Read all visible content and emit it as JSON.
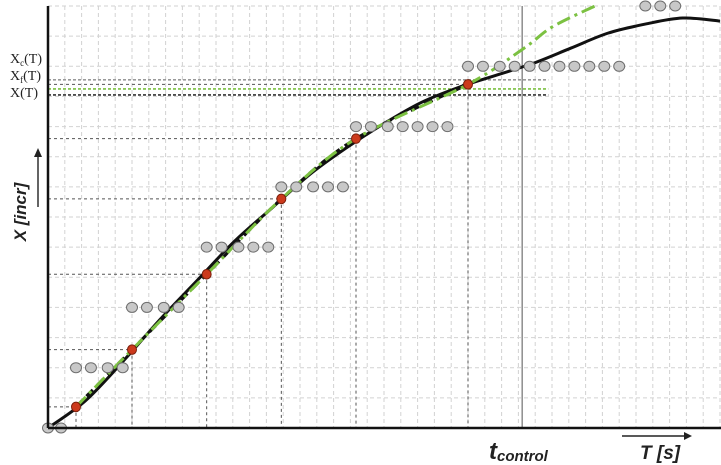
{
  "chart_data": {
    "type": "line",
    "axes": {
      "ylabel": "X [incr]",
      "xlabel": "T [s]",
      "x_marker_label_main": "t",
      "x_marker_label_sub": "control"
    },
    "y_markers": [
      {
        "label_main": "X",
        "label_sub": "c",
        "label_suffix": "(T)",
        "value": 11.55,
        "color": "#9a9a9a",
        "style": "dotted"
      },
      {
        "label_main": "X",
        "label_sub": "f",
        "label_suffix": "(T)",
        "value": 11.25,
        "color": "#7cc142",
        "style": "dotted"
      },
      {
        "label_main": "X",
        "label_sub": "",
        "label_suffix": "(T)",
        "value": 11.05,
        "color": "#333333",
        "style": "dotted"
      }
    ],
    "x_markers": [
      {
        "name": "t_control",
        "value": 25.4
      }
    ],
    "grid": true,
    "xlim": [
      0,
      36
    ],
    "ylim": [
      0,
      14
    ],
    "series": [
      {
        "kind": "true_curve",
        "style": "solid",
        "color": "#111111",
        "points": [
          [
            0,
            0
          ],
          [
            2,
            0.9
          ],
          [
            4,
            2.2
          ],
          [
            6,
            3.6
          ],
          [
            8,
            4.9
          ],
          [
            10,
            6.2
          ],
          [
            12,
            7.3
          ],
          [
            14,
            8.4
          ],
          [
            16,
            9.3
          ],
          [
            18,
            10.1
          ],
          [
            20,
            10.8
          ],
          [
            22,
            11.3
          ],
          [
            24,
            11.7
          ],
          [
            26,
            12.1
          ],
          [
            28,
            12.6
          ],
          [
            30,
            13.1
          ],
          [
            32,
            13.4
          ],
          [
            34,
            13.6
          ],
          [
            36,
            13.5
          ]
        ]
      },
      {
        "kind": "estimate",
        "style": "dashed",
        "color": "#111111",
        "points": [
          [
            1.5,
            0.7
          ],
          [
            4.5,
            2.6
          ],
          [
            8.5,
            5.1
          ],
          [
            12.5,
            7.6
          ],
          [
            16.5,
            9.6
          ],
          [
            22.5,
            11.4
          ]
        ]
      },
      {
        "kind": "filtered",
        "style": "dash-dot",
        "color": "#7cc142",
        "points": [
          [
            1.5,
            0.7
          ],
          [
            4.5,
            2.6
          ],
          [
            8.5,
            5.1
          ],
          [
            12.5,
            7.6
          ],
          [
            16.5,
            9.6
          ],
          [
            22.5,
            11.4
          ],
          [
            25.5,
            12.6
          ],
          [
            27,
            13.3
          ],
          [
            29.3,
            14.0
          ]
        ]
      }
    ],
    "samples": [
      {
        "x": 1.5,
        "y": 0.7
      },
      {
        "x": 4.5,
        "y": 2.6
      },
      {
        "x": 8.5,
        "y": 5.1
      },
      {
        "x": 12.5,
        "y": 7.6
      },
      {
        "x": 16.5,
        "y": 9.6
      },
      {
        "x": 22.5,
        "y": 11.4
      }
    ],
    "quantized": [
      {
        "x": 0,
        "y": 0
      },
      {
        "x": 0.7,
        "y": 0
      },
      {
        "x": 1.5,
        "y": 2
      },
      {
        "x": 2.3,
        "y": 2
      },
      {
        "x": 3.2,
        "y": 2
      },
      {
        "x": 4.0,
        "y": 2
      },
      {
        "x": 4.5,
        "y": 4
      },
      {
        "x": 5.3,
        "y": 4
      },
      {
        "x": 6.2,
        "y": 4
      },
      {
        "x": 7.0,
        "y": 4
      },
      {
        "x": 8.5,
        "y": 6
      },
      {
        "x": 9.3,
        "y": 6
      },
      {
        "x": 10.2,
        "y": 6
      },
      {
        "x": 11.0,
        "y": 6
      },
      {
        "x": 11.8,
        "y": 6
      },
      {
        "x": 12.5,
        "y": 8
      },
      {
        "x": 13.3,
        "y": 8
      },
      {
        "x": 14.2,
        "y": 8
      },
      {
        "x": 15.0,
        "y": 8
      },
      {
        "x": 15.8,
        "y": 8
      },
      {
        "x": 16.5,
        "y": 10
      },
      {
        "x": 17.3,
        "y": 10
      },
      {
        "x": 18.2,
        "y": 10
      },
      {
        "x": 19.0,
        "y": 10
      },
      {
        "x": 19.8,
        "y": 10
      },
      {
        "x": 20.6,
        "y": 10
      },
      {
        "x": 21.4,
        "y": 10
      },
      {
        "x": 22.5,
        "y": 12
      },
      {
        "x": 23.3,
        "y": 12
      },
      {
        "x": 24.2,
        "y": 12
      },
      {
        "x": 25.0,
        "y": 12
      },
      {
        "x": 25.8,
        "y": 12
      },
      {
        "x": 26.6,
        "y": 12
      },
      {
        "x": 27.4,
        "y": 12
      },
      {
        "x": 28.2,
        "y": 12
      },
      {
        "x": 29.0,
        "y": 12
      },
      {
        "x": 29.8,
        "y": 12
      },
      {
        "x": 30.6,
        "y": 12
      },
      {
        "x": 32.0,
        "y": 14
      },
      {
        "x": 32.8,
        "y": 14
      },
      {
        "x": 33.6,
        "y": 14
      }
    ]
  }
}
